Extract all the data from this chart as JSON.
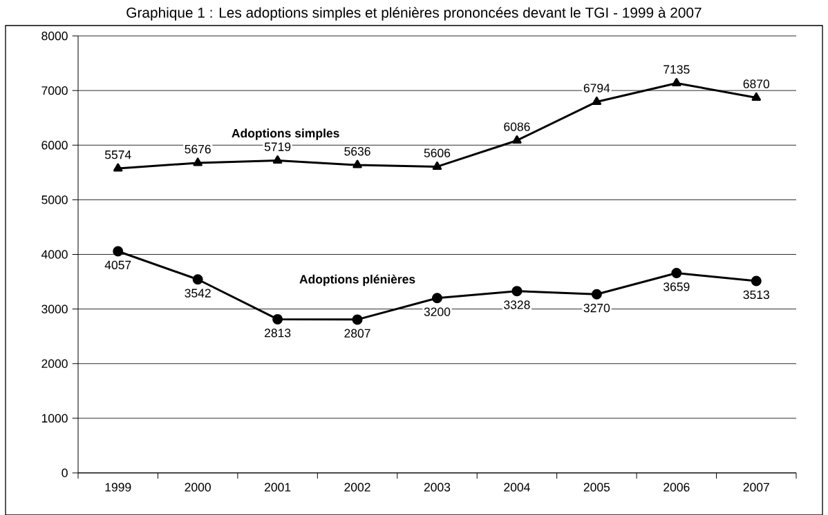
{
  "chart_data": {
    "type": "line",
    "title": "Graphique 1 : Les adoptions simples et plénières prononcées devant le TGI - 1999 à 2007",
    "categories": [
      "1999",
      "2000",
      "2001",
      "2002",
      "2003",
      "2004",
      "2005",
      "2006",
      "2007"
    ],
    "series": [
      {
        "name": "Adoptions simples",
        "color": "#000000",
        "marker": "triangle",
        "values": [
          5574,
          5676,
          5719,
          5636,
          5606,
          6086,
          6794,
          7135,
          6870
        ]
      },
      {
        "name": "Adoptions plénières",
        "color": "#000000",
        "marker": "circle",
        "values": [
          4057,
          3542,
          2813,
          2807,
          3200,
          3328,
          3270,
          3659,
          3513
        ]
      }
    ],
    "ylim": [
      0,
      8000
    ],
    "yticks": [
      0,
      1000,
      2000,
      3000,
      4000,
      5000,
      6000,
      7000,
      8000
    ],
    "grid": "y",
    "data_labels": true
  }
}
